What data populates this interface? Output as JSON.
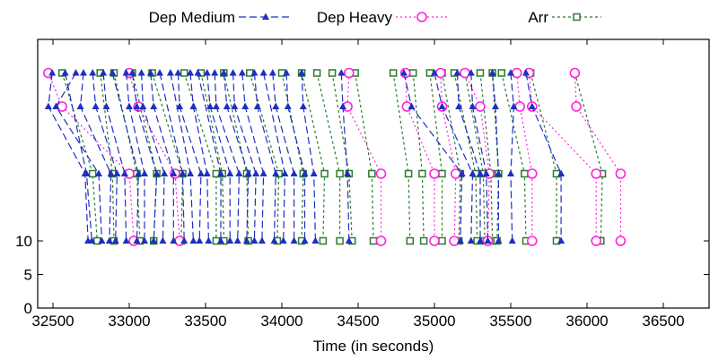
{
  "chart_data": {
    "type": "line",
    "title": "",
    "xlabel": "Time (in seconds)",
    "ylabel": "",
    "xlim": [
      32400,
      36800
    ],
    "ylim": [
      0,
      40
    ],
    "xticks": [
      32500,
      33000,
      33500,
      34000,
      34500,
      35000,
      35500,
      36000,
      36500
    ],
    "yticks": [
      0,
      5,
      10
    ],
    "grid": false,
    "legend_position": "top",
    "colors": {
      "medium": "#1f2fbf",
      "heavy": "#ff22dd",
      "arr": "#2b7a2b",
      "axis": "#000000"
    },
    "series": [
      {
        "name": "Dep Medium",
        "marker": "triangle",
        "segments": [
          [
            [
              32495,
              35
            ],
            [
              32470,
              30
            ],
            [
              32710,
              20
            ],
            [
              32730,
              10
            ]
          ],
          [
            [
              32580,
              35
            ],
            [
              32720,
              20
            ],
            [
              32755,
              10
            ]
          ],
          [
            [
              32650,
              35
            ],
            [
              32520,
              30
            ],
            [
              32800,
              20
            ],
            [
              32820,
              10
            ]
          ],
          [
            [
              32700,
              35
            ],
            [
              32680,
              30
            ],
            [
              32880,
              20
            ],
            [
              32870,
              10
            ]
          ],
          [
            [
              32760,
              35
            ],
            [
              32780,
              30
            ],
            [
              32920,
              20
            ],
            [
              32910,
              10
            ]
          ],
          [
            [
              32830,
              35
            ],
            [
              32850,
              30
            ],
            [
              32970,
              20
            ],
            [
              32980,
              10
            ]
          ],
          [
            [
              32890,
              35
            ],
            [
              33060,
              20
            ],
            [
              33050,
              10
            ]
          ],
          [
            [
              32980,
              35
            ],
            [
              33000,
              30
            ],
            [
              33100,
              20
            ],
            [
              33100,
              10
            ]
          ],
          [
            [
              33020,
              35
            ],
            [
              33050,
              30
            ],
            [
              33180,
              20
            ],
            [
              33160,
              10
            ]
          ],
          [
            [
              33080,
              35
            ],
            [
              33090,
              30
            ],
            [
              33230,
              20
            ],
            [
              33220,
              10
            ]
          ],
          [
            [
              33140,
              35
            ],
            [
              33160,
              30
            ],
            [
              33290,
              20
            ],
            [
              33290,
              10
            ]
          ],
          [
            [
              33200,
              35
            ],
            [
              33350,
              20
            ],
            [
              33360,
              10
            ]
          ],
          [
            [
              33270,
              35
            ],
            [
              33400,
              20
            ],
            [
              33420,
              10
            ]
          ],
          [
            [
              33320,
              35
            ],
            [
              33330,
              30
            ],
            [
              33470,
              20
            ],
            [
              33460,
              10
            ]
          ],
          [
            [
              33400,
              35
            ],
            [
              33420,
              30
            ],
            [
              33510,
              20
            ],
            [
              33520,
              10
            ]
          ],
          [
            [
              33450,
              35
            ],
            [
              33600,
              20
            ],
            [
              33600,
              10
            ]
          ],
          [
            [
              33510,
              35
            ],
            [
              33530,
              30
            ],
            [
              33660,
              20
            ],
            [
              33660,
              10
            ]
          ],
          [
            [
              33560,
              35
            ],
            [
              33570,
              30
            ],
            [
              33720,
              20
            ],
            [
              33710,
              10
            ]
          ],
          [
            [
              33620,
              35
            ],
            [
              33640,
              30
            ],
            [
              33780,
              20
            ],
            [
              33770,
              10
            ]
          ],
          [
            [
              33680,
              35
            ],
            [
              33690,
              30
            ],
            [
              33830,
              20
            ],
            [
              33820,
              10
            ]
          ],
          [
            [
              33740,
              35
            ],
            [
              33760,
              30
            ],
            [
              33880,
              20
            ],
            [
              33870,
              10
            ]
          ],
          [
            [
              33820,
              35
            ],
            [
              33840,
              30
            ],
            [
              33960,
              20
            ],
            [
              33950,
              10
            ]
          ],
          [
            [
              33880,
              35
            ],
            [
              34020,
              20
            ],
            [
              34010,
              10
            ]
          ],
          [
            [
              33940,
              35
            ],
            [
              33960,
              30
            ],
            [
              34080,
              20
            ],
            [
              34080,
              10
            ]
          ],
          [
            [
              34030,
              35
            ],
            [
              34040,
              30
            ],
            [
              34150,
              20
            ],
            [
              34150,
              10
            ]
          ],
          [
            [
              34130,
              35
            ],
            [
              34140,
              30
            ],
            [
              34210,
              20
            ],
            [
              34220,
              10
            ]
          ],
          [
            [
              34390,
              35
            ],
            [
              34400,
              30
            ],
            [
              34430,
              20
            ],
            [
              34440,
              10
            ]
          ],
          [
            [
              34800,
              35
            ],
            [
              34850,
              30
            ],
            [
              35180,
              20
            ],
            [
              35170,
              10
            ]
          ],
          [
            [
              35000,
              35
            ],
            [
              35050,
              30
            ],
            [
              35250,
              20
            ],
            [
              35240,
              10
            ]
          ],
          [
            [
              35150,
              35
            ],
            [
              35160,
              30
            ],
            [
              35300,
              20
            ],
            [
              35300,
              10
            ]
          ],
          [
            [
              35240,
              35
            ],
            [
              35250,
              30
            ],
            [
              35340,
              20
            ],
            [
              35350,
              10
            ]
          ],
          [
            [
              35380,
              35
            ],
            [
              35400,
              30
            ],
            [
              35420,
              20
            ],
            [
              35420,
              10
            ]
          ],
          [
            [
              35500,
              35
            ],
            [
              35520,
              30
            ],
            [
              35500,
              20
            ],
            [
              35510,
              10
            ]
          ],
          [
            [
              35600,
              35
            ],
            [
              35640,
              30
            ],
            [
              35830,
              20
            ],
            [
              35830,
              10
            ]
          ]
        ]
      },
      {
        "name": "Dep Heavy",
        "marker": "circle",
        "segments": [
          [
            [
              32470,
              35
            ],
            [
              32560,
              30
            ],
            [
              33000,
              20
            ],
            [
              33030,
              10
            ]
          ],
          [
            [
              33000,
              35
            ],
            [
              33060,
              30
            ],
            [
              33300,
              20
            ],
            [
              33330,
              10
            ]
          ],
          [
            [
              34440,
              35
            ],
            [
              34430,
              30
            ],
            [
              34650,
              20
            ],
            [
              34650,
              10
            ]
          ],
          [
            [
              34810,
              35
            ],
            [
              34820,
              30
            ],
            [
              35000,
              20
            ],
            [
              35000,
              10
            ]
          ],
          [
            [
              35040,
              35
            ],
            [
              35050,
              30
            ],
            [
              35140,
              20
            ],
            [
              35130,
              10
            ]
          ],
          [
            [
              35200,
              35
            ],
            [
              35300,
              30
            ],
            [
              35360,
              20
            ],
            [
              35350,
              10
            ]
          ],
          [
            [
              35540,
              35
            ],
            [
              35560,
              30
            ],
            [
              35640,
              20
            ],
            [
              35640,
              10
            ]
          ],
          [
            [
              35620,
              35
            ],
            [
              35640,
              30
            ],
            [
              36060,
              20
            ],
            [
              36060,
              10
            ]
          ],
          [
            [
              35920,
              35
            ],
            [
              35930,
              30
            ],
            [
              36220,
              20
            ],
            [
              36220,
              10
            ]
          ]
        ]
      },
      {
        "name": "Arr",
        "marker": "square",
        "segments": [
          [
            [
              32560,
              35
            ],
            [
              32760,
              20
            ],
            [
              32790,
              10
            ]
          ],
          [
            [
              32810,
              35
            ],
            [
              32890,
              20
            ],
            [
              32900,
              10
            ]
          ],
          [
            [
              32900,
              35
            ],
            [
              33050,
              20
            ],
            [
              33070,
              10
            ]
          ],
          [
            [
              33020,
              35
            ],
            [
              33180,
              20
            ],
            [
              33160,
              10
            ]
          ],
          [
            [
              33150,
              35
            ],
            [
              33350,
              20
            ],
            [
              33340,
              10
            ]
          ],
          [
            [
              33360,
              35
            ],
            [
              33570,
              20
            ],
            [
              33570,
              10
            ]
          ],
          [
            [
              33470,
              35
            ],
            [
              33610,
              20
            ],
            [
              33620,
              10
            ]
          ],
          [
            [
              33620,
              35
            ],
            [
              33770,
              20
            ],
            [
              33780,
              10
            ]
          ],
          [
            [
              33790,
              35
            ],
            [
              33980,
              20
            ],
            [
              33970,
              10
            ]
          ],
          [
            [
              34000,
              35
            ],
            [
              34140,
              20
            ],
            [
              34130,
              10
            ]
          ],
          [
            [
              34130,
              35
            ],
            [
              34280,
              20
            ],
            [
              34270,
              10
            ]
          ],
          [
            [
              34230,
              35
            ],
            [
              34380,
              20
            ],
            [
              34380,
              10
            ]
          ],
          [
            [
              34330,
              35
            ],
            [
              34440,
              20
            ],
            [
              34460,
              10
            ]
          ],
          [
            [
              34480,
              35
            ],
            [
              34590,
              20
            ],
            [
              34600,
              10
            ]
          ],
          [
            [
              34730,
              35
            ],
            [
              34830,
              20
            ],
            [
              34840,
              10
            ]
          ],
          [
            [
              34860,
              35
            ],
            [
              34920,
              20
            ],
            [
              34930,
              10
            ]
          ],
          [
            [
              34970,
              35
            ],
            [
              35050,
              20
            ],
            [
              35050,
              10
            ]
          ],
          [
            [
              35050,
              35
            ],
            [
              35170,
              20
            ],
            [
              35160,
              10
            ]
          ],
          [
            [
              35130,
              35
            ],
            [
              35270,
              20
            ],
            [
              35280,
              10
            ]
          ],
          [
            [
              35200,
              35
            ],
            [
              35320,
              20
            ],
            [
              35330,
              10
            ]
          ],
          [
            [
              35300,
              35
            ],
            [
              35370,
              20
            ],
            [
              35380,
              10
            ]
          ],
          [
            [
              35380,
              35
            ],
            [
              35420,
              20
            ],
            [
              35410,
              10
            ]
          ],
          [
            [
              35440,
              35
            ],
            [
              35590,
              20
            ],
            [
              35600,
              10
            ]
          ],
          [
            [
              35630,
              35
            ],
            [
              35800,
              20
            ],
            [
              35800,
              10
            ]
          ],
          [
            [
              35920,
              35
            ],
            [
              36100,
              20
            ],
            [
              36090,
              10
            ]
          ]
        ]
      }
    ]
  }
}
